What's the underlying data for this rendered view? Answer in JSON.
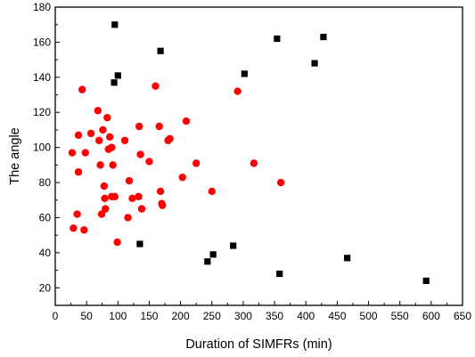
{
  "chart_data": {
    "type": "scatter",
    "title": "",
    "xlabel": "Duration of SIMFRs (min)",
    "ylabel": "The angle",
    "xlim": [
      0,
      650
    ],
    "ylim": [
      10,
      180
    ],
    "xticks": [
      0,
      50,
      100,
      150,
      200,
      250,
      300,
      350,
      400,
      450,
      500,
      550,
      600,
      650
    ],
    "yticks": [
      20,
      40,
      60,
      80,
      100,
      120,
      140,
      160,
      180
    ],
    "grid": false,
    "legend": "none",
    "series": [
      {
        "marker": "square",
        "color": "#000000",
        "points": [
          {
            "x": 94,
            "y": 137
          },
          {
            "x": 95,
            "y": 170
          },
          {
            "x": 100,
            "y": 141
          },
          {
            "x": 135,
            "y": 45
          },
          {
            "x": 168,
            "y": 155
          },
          {
            "x": 243,
            "y": 35
          },
          {
            "x": 252,
            "y": 39
          },
          {
            "x": 284,
            "y": 44
          },
          {
            "x": 302,
            "y": 142
          },
          {
            "x": 354,
            "y": 162
          },
          {
            "x": 358,
            "y": 28
          },
          {
            "x": 414,
            "y": 148
          },
          {
            "x": 428,
            "y": 163
          },
          {
            "x": 466,
            "y": 37
          },
          {
            "x": 592,
            "y": 24
          }
        ]
      },
      {
        "marker": "circle",
        "color": "#ff0000",
        "points": [
          {
            "x": 27,
            "y": 97
          },
          {
            "x": 29,
            "y": 54
          },
          {
            "x": 35,
            "y": 62
          },
          {
            "x": 37,
            "y": 86
          },
          {
            "x": 37,
            "y": 107
          },
          {
            "x": 43,
            "y": 133
          },
          {
            "x": 46,
            "y": 53
          },
          {
            "x": 48,
            "y": 97
          },
          {
            "x": 57,
            "y": 108
          },
          {
            "x": 68,
            "y": 121
          },
          {
            "x": 70,
            "y": 104
          },
          {
            "x": 72,
            "y": 90
          },
          {
            "x": 74,
            "y": 62
          },
          {
            "x": 76,
            "y": 110
          },
          {
            "x": 78,
            "y": 78
          },
          {
            "x": 79,
            "y": 71
          },
          {
            "x": 80,
            "y": 65
          },
          {
            "x": 83,
            "y": 117
          },
          {
            "x": 85,
            "y": 99
          },
          {
            "x": 87,
            "y": 106
          },
          {
            "x": 90,
            "y": 100
          },
          {
            "x": 90,
            "y": 72
          },
          {
            "x": 92,
            "y": 90
          },
          {
            "x": 95,
            "y": 72
          },
          {
            "x": 99,
            "y": 46
          },
          {
            "x": 111,
            "y": 104
          },
          {
            "x": 116,
            "y": 60
          },
          {
            "x": 118,
            "y": 81
          },
          {
            "x": 123,
            "y": 71
          },
          {
            "x": 133,
            "y": 72
          },
          {
            "x": 134,
            "y": 112
          },
          {
            "x": 136,
            "y": 96
          },
          {
            "x": 138,
            "y": 65
          },
          {
            "x": 150,
            "y": 92
          },
          {
            "x": 160,
            "y": 135
          },
          {
            "x": 166,
            "y": 112
          },
          {
            "x": 168,
            "y": 75
          },
          {
            "x": 170,
            "y": 68
          },
          {
            "x": 171,
            "y": 67
          },
          {
            "x": 180,
            "y": 104
          },
          {
            "x": 183,
            "y": 105
          },
          {
            "x": 203,
            "y": 83
          },
          {
            "x": 209,
            "y": 115
          },
          {
            "x": 225,
            "y": 91
          },
          {
            "x": 250,
            "y": 75
          },
          {
            "x": 291,
            "y": 132
          },
          {
            "x": 317,
            "y": 91
          },
          {
            "x": 360,
            "y": 80
          }
        ]
      }
    ]
  }
}
